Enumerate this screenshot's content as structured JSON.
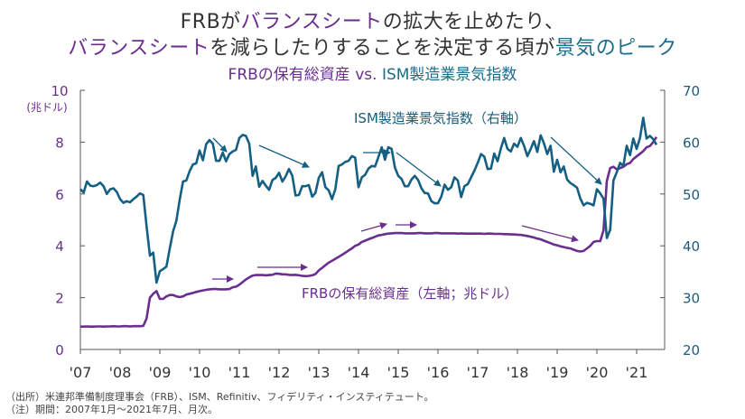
{
  "header": {
    "line1": [
      {
        "text": "FRBが",
        "color": "dark"
      },
      {
        "text": "バランスシート",
        "color": "purple"
      },
      {
        "text": "の拡大を止めたり、",
        "color": "dark"
      }
    ],
    "line2": [
      {
        "text": "バランスシート",
        "color": "purple"
      },
      {
        "text": "を減らしたりすることを決定する頃が",
        "color": "dark"
      },
      {
        "text": "景気のピーク",
        "color": "teal"
      }
    ]
  },
  "colors": {
    "purple": "#6a2e8e",
    "teal": "#145f82",
    "dark": "#333333",
    "axis": "#555555"
  },
  "chart_data": {
    "type": "line",
    "title_parts": [
      {
        "text": "FRBの保有総資産",
        "color": "purple"
      },
      {
        "text": " vs. ",
        "color": "purple"
      },
      {
        "text": "ISM製造業景気指数",
        "color": "teal"
      }
    ],
    "x_start": "2007-01",
    "frequency": "monthly",
    "x_ticks": [
      "'07",
      "'08",
      "'09",
      "'10",
      "'11",
      "'12",
      "'13",
      "'14",
      "'15",
      "'16",
      "'17",
      "'18",
      "'19",
      "'20",
      "'21"
    ],
    "left_axis": {
      "ticks": [
        "0",
        "2",
        "4",
        "6",
        "8",
        "10"
      ],
      "unit_label": "(兆ドル)",
      "ylim": [
        0,
        10
      ]
    },
    "right_axis": {
      "ticks": [
        "20",
        "30",
        "40",
        "50",
        "60",
        "70"
      ],
      "ylim": [
        20,
        70
      ]
    },
    "series": [
      {
        "name": "FRBの保有総資産（左軸；兆ドル）",
        "axis": "left",
        "color": "purple",
        "values": [
          0.88,
          0.88,
          0.89,
          0.88,
          0.88,
          0.89,
          0.89,
          0.88,
          0.89,
          0.89,
          0.9,
          0.89,
          0.89,
          0.9,
          0.9,
          0.89,
          0.9,
          0.9,
          0.9,
          0.91,
          1.2,
          2.0,
          2.15,
          2.25,
          1.95,
          1.95,
          2.05,
          2.1,
          2.1,
          2.05,
          2.02,
          2.05,
          2.12,
          2.15,
          2.18,
          2.22,
          2.25,
          2.28,
          2.3,
          2.32,
          2.33,
          2.33,
          2.32,
          2.32,
          2.32,
          2.33,
          2.4,
          2.42,
          2.5,
          2.6,
          2.7,
          2.78,
          2.85,
          2.87,
          2.87,
          2.87,
          2.86,
          2.87,
          2.88,
          2.93,
          2.92,
          2.9,
          2.9,
          2.88,
          2.87,
          2.88,
          2.86,
          2.84,
          2.83,
          2.84,
          2.86,
          2.91,
          3.05,
          3.15,
          3.25,
          3.35,
          3.42,
          3.5,
          3.57,
          3.65,
          3.73,
          3.82,
          3.9,
          4.0,
          4.05,
          4.15,
          4.2,
          4.25,
          4.3,
          4.35,
          4.4,
          4.42,
          4.45,
          4.47,
          4.48,
          4.49,
          4.49,
          4.49,
          4.48,
          4.48,
          4.48,
          4.48,
          4.49,
          4.49,
          4.48,
          4.48,
          4.48,
          4.49,
          4.49,
          4.48,
          4.48,
          4.48,
          4.48,
          4.48,
          4.47,
          4.48,
          4.47,
          4.47,
          4.47,
          4.47,
          4.47,
          4.47,
          4.46,
          4.47,
          4.47,
          4.46,
          4.46,
          4.46,
          4.45,
          4.45,
          4.44,
          4.44,
          4.43,
          4.42,
          4.4,
          4.38,
          4.35,
          4.32,
          4.28,
          4.25,
          4.2,
          4.15,
          4.1,
          4.05,
          4.02,
          3.98,
          3.95,
          3.92,
          3.9,
          3.85,
          3.8,
          3.78,
          3.8,
          3.9,
          4.0,
          4.15,
          4.18,
          4.18,
          4.6,
          6.5,
          7.0,
          7.05,
          6.95,
          7.0,
          7.05,
          7.15,
          7.2,
          7.35,
          7.45,
          7.55,
          7.65,
          7.8,
          7.85,
          8.0,
          8.2
        ]
      },
      {
        "name": "ISM製造業景気指数（右軸）",
        "axis": "right",
        "color": "teal",
        "values": [
          50.9,
          50.3,
          52.4,
          51.6,
          51.5,
          51.7,
          52.2,
          51.5,
          50.0,
          50.9,
          51.1,
          50.4,
          49.0,
          48.3,
          48.6,
          48.4,
          49.0,
          49.5,
          50.1,
          49.8,
          43.8,
          38.1,
          38.7,
          32.9,
          35.1,
          35.5,
          36.0,
          39.5,
          42.8,
          44.8,
          48.9,
          52.4,
          52.6,
          54.4,
          55.7,
          55.9,
          58.4,
          56.5,
          59.6,
          60.4,
          59.7,
          56.4,
          56.4,
          58.0,
          56.3,
          57.7,
          58.2,
          58.5,
          60.8,
          61.4,
          61.2,
          59.7,
          53.5,
          55.3,
          51.4,
          52.5,
          51.6,
          50.8,
          52.7,
          53.1,
          54.1,
          52.4,
          53.4,
          54.8,
          53.5,
          49.7,
          49.8,
          51.5,
          51.5,
          51.7,
          49.5,
          50.2,
          53.1,
          54.2,
          51.3,
          50.7,
          49.0,
          50.9,
          55.4,
          55.7,
          56.2,
          56.4,
          57.3,
          57.0,
          51.3,
          53.2,
          53.7,
          54.9,
          55.4,
          55.3,
          57.1,
          59.0,
          56.6,
          59.0,
          58.7,
          55.1,
          53.5,
          52.9,
          51.5,
          51.5,
          52.8,
          53.5,
          52.7,
          51.1,
          50.2,
          50.1,
          48.6,
          48.2,
          48.2,
          49.5,
          51.8,
          50.8,
          51.3,
          53.2,
          52.6,
          49.4,
          51.5,
          51.9,
          53.2,
          54.5,
          56.0,
          57.7,
          57.2,
          54.8,
          54.9,
          57.8,
          56.3,
          58.8,
          60.8,
          58.7,
          58.2,
          59.7,
          59.1,
          60.8,
          59.3,
          57.3,
          58.7,
          60.2,
          58.1,
          61.3,
          59.8,
          57.7,
          59.3,
          54.3,
          56.6,
          54.2,
          55.3,
          52.8,
          52.1,
          51.7,
          51.2,
          49.1,
          47.8,
          48.3,
          48.1,
          47.8,
          50.9,
          50.1,
          49.1,
          41.5,
          43.1,
          52.6,
          54.2,
          56.0,
          55.4,
          59.3,
          57.5,
          60.7,
          58.7,
          60.8,
          64.7,
          60.7,
          61.2,
          60.6,
          59.5
        ]
      }
    ],
    "annotations": {
      "ism_label": "ISM製造業景気指数（右軸）",
      "frb_label": "FRBの保有総資産（左軸；兆ドル）"
    }
  },
  "footnotes": {
    "source": "（出所）米連邦準備制度理事会（FRB）、ISM、Refinitiv、フィデリティ・インスティテュート。",
    "note": "（注）期間：2007年1月～2021年7月、月次。"
  }
}
